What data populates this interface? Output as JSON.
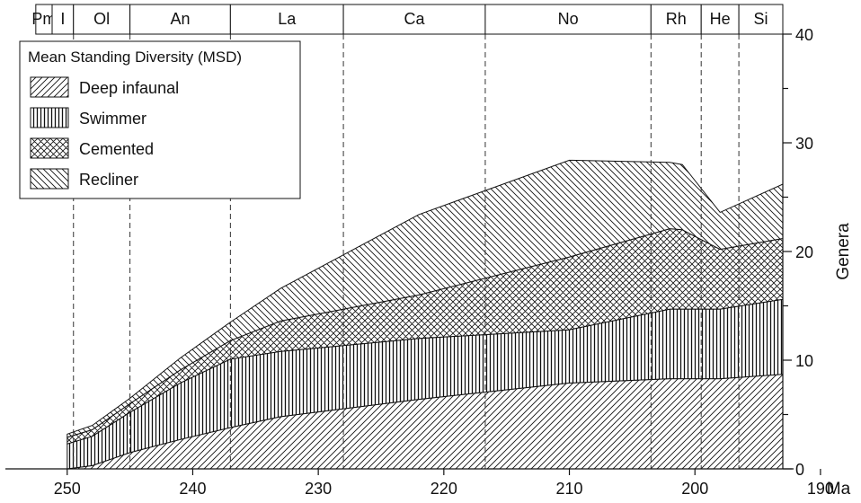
{
  "chart_data": {
    "type": "area",
    "stacked": true,
    "xlabel": "Ma",
    "ylabel": "Genera",
    "xlim": [
      251.2,
      193
    ],
    "ylim": [
      0,
      40
    ],
    "x_ticks": [
      250,
      240,
      230,
      220,
      210,
      200,
      190
    ],
    "y_ticks": [
      0,
      10,
      20,
      30,
      40
    ],
    "y_minor_ticks": [
      5,
      15,
      25,
      35
    ],
    "legend": {
      "title": "Mean Standing Diversity (MSD)",
      "position": "top-left",
      "entries": [
        {
          "label": "Deep infaunal",
          "pattern": "diagonal-forward"
        },
        {
          "label": "Swimmer",
          "pattern": "vertical"
        },
        {
          "label": "Cemented",
          "pattern": "crosshatch"
        },
        {
          "label": "Recliner",
          "pattern": "diagonal-back"
        }
      ]
    },
    "stages": [
      {
        "label": "Pm",
        "start": 252.5,
        "end": 251.2
      },
      {
        "label": "I",
        "start": 251.2,
        "end": 249.5
      },
      {
        "label": "Ol",
        "start": 249.5,
        "end": 245
      },
      {
        "label": "An",
        "start": 245,
        "end": 237
      },
      {
        "label": "La",
        "start": 237,
        "end": 228
      },
      {
        "label": "Ca",
        "start": 228,
        "end": 216.7
      },
      {
        "label": "No",
        "start": 216.7,
        "end": 203.5
      },
      {
        "label": "Rh",
        "start": 203.5,
        "end": 199.5
      },
      {
        "label": "He",
        "start": 199.5,
        "end": 196.5
      },
      {
        "label": "Si",
        "start": 196.5,
        "end": 193
      }
    ],
    "x": [
      250,
      248,
      245,
      241,
      237,
      233,
      222,
      210,
      202,
      201,
      198,
      193
    ],
    "series": [
      {
        "name": "Deep infaunal",
        "pattern": "diagonal-forward",
        "values": [
          0,
          0.3,
          1.5,
          2.7,
          3.8,
          4.8,
          6.4,
          7.9,
          8.3,
          8.3,
          8.3,
          8.7
        ]
      },
      {
        "name": "Swimmer",
        "pattern": "vertical",
        "values": [
          2.3,
          2.7,
          3.7,
          5.2,
          6.3,
          6.0,
          5.6,
          4.9,
          6.4,
          6.4,
          6.4,
          6.9
        ]
      },
      {
        "name": "Cemented",
        "pattern": "crosshatch",
        "values": [
          0.6,
          0.6,
          0.8,
          1.2,
          1.7,
          2.8,
          4.0,
          6.7,
          7.4,
          7.3,
          5.5,
          5.6
        ]
      },
      {
        "name": "Recliner",
        "pattern": "diagonal-back",
        "values": [
          0.3,
          0.4,
          0.5,
          1.1,
          1.7,
          3.0,
          7.4,
          8.9,
          6.1,
          6.0,
          3.4,
          5.0
        ]
      }
    ]
  }
}
